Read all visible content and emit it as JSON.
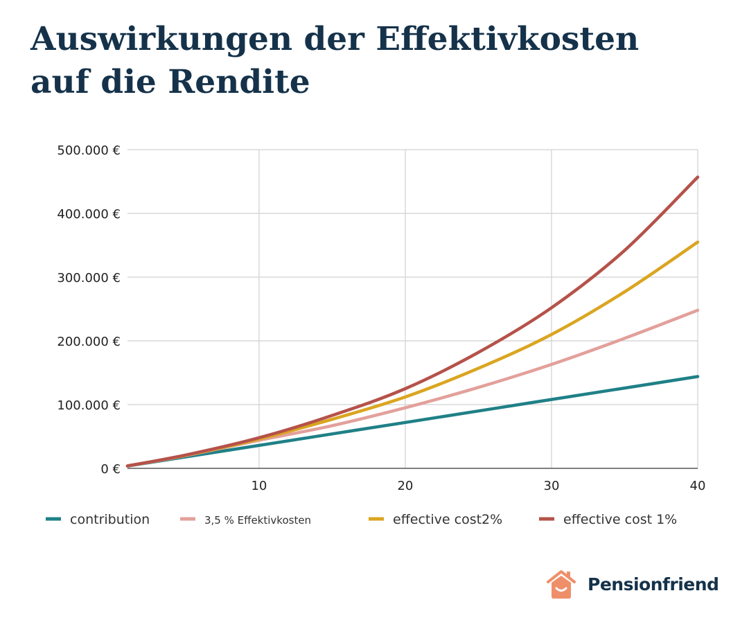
{
  "title": {
    "line1": "Auswirkungen der Effektivkosten",
    "line2": "auf die Rendite"
  },
  "brand": {
    "name": "Pensionfriend",
    "logo_icon": "house-smile-icon",
    "logo_color": "#ef8f69"
  },
  "chart_data": {
    "type": "line",
    "title": "Auswirkungen der Effektivkosten auf die Rendite",
    "xlim": [
      1,
      40
    ],
    "ylim": [
      0,
      500000
    ],
    "x_ticks": [
      10,
      20,
      30,
      40
    ],
    "y_ticks": [
      0,
      100000,
      200000,
      300000,
      400000,
      500000
    ],
    "y_tick_labels": [
      "0 €",
      "100.000 €",
      "200.000 €",
      "300.000 €",
      "400.000 €",
      "500.000 €"
    ],
    "grid": true,
    "legend_position": "bottom",
    "x": [
      1,
      5,
      10,
      15,
      20,
      25,
      30,
      35,
      40
    ],
    "series": [
      {
        "name": "contribution",
        "color": "#1f8087",
        "values": [
          3600,
          18000,
          36000,
          54000,
          72000,
          90000,
          108000,
          126000,
          144000
        ]
      },
      {
        "name": "3,5 % Effektivkosten",
        "color": "#e3a09b",
        "values": [
          3700,
          20000,
          44000,
          67000,
          95000,
          127000,
          163000,
          204000,
          248000
        ]
      },
      {
        "name": "effective cost2%",
        "color": "#daa520",
        "values": [
          3750,
          20500,
          46000,
          77000,
          112000,
          157000,
          210000,
          277000,
          355000
        ]
      },
      {
        "name": "effective cost 1%",
        "color": "#b5524a",
        "values": [
          3800,
          21000,
          48000,
          83000,
          125000,
          182000,
          252000,
          342000,
          457000
        ]
      }
    ]
  }
}
